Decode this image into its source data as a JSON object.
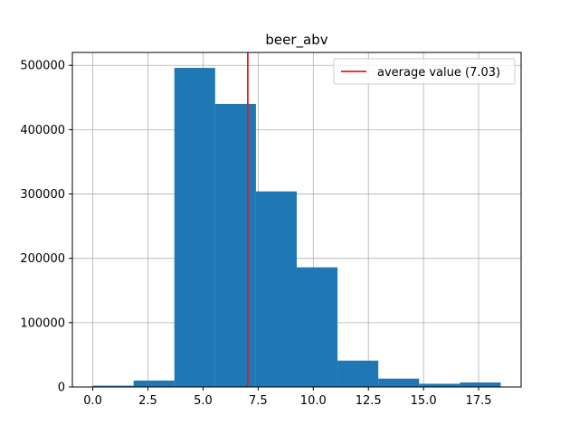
{
  "chart_data": {
    "type": "bar",
    "title": "beer_abv",
    "xlabel": "",
    "ylabel": "",
    "xlim": [
      -0.925,
      19.425
    ],
    "ylim": [
      0,
      520000
    ],
    "grid": true,
    "legend_position": "top-right",
    "bin_edges": [
      0.0,
      1.85,
      3.7,
      5.55,
      7.4,
      9.25,
      11.1,
      12.95,
      14.8,
      16.65,
      18.5
    ],
    "values": [
      2000,
      10000,
      496000,
      440000,
      304000,
      186000,
      41000,
      13000,
      5000,
      7000
    ],
    "bar_color": "#1f77b4",
    "average_line": {
      "value": 7.03,
      "label": "average value (7.03)",
      "color": "#e8191c"
    },
    "x_ticks": [
      {
        "value": 0.0,
        "label": "0.0"
      },
      {
        "value": 2.5,
        "label": "2.5"
      },
      {
        "value": 5.0,
        "label": "5.0"
      },
      {
        "value": 7.5,
        "label": "7.5"
      },
      {
        "value": 10.0,
        "label": "10.0"
      },
      {
        "value": 12.5,
        "label": "12.5"
      },
      {
        "value": 15.0,
        "label": "15.0"
      },
      {
        "value": 17.5,
        "label": "17.5"
      }
    ],
    "y_ticks": [
      {
        "value": 0,
        "label": "0"
      },
      {
        "value": 100000,
        "label": "100000"
      },
      {
        "value": 200000,
        "label": "200000"
      },
      {
        "value": 300000,
        "label": "300000"
      },
      {
        "value": 400000,
        "label": "400000"
      },
      {
        "value": 500000,
        "label": "500000"
      }
    ]
  }
}
